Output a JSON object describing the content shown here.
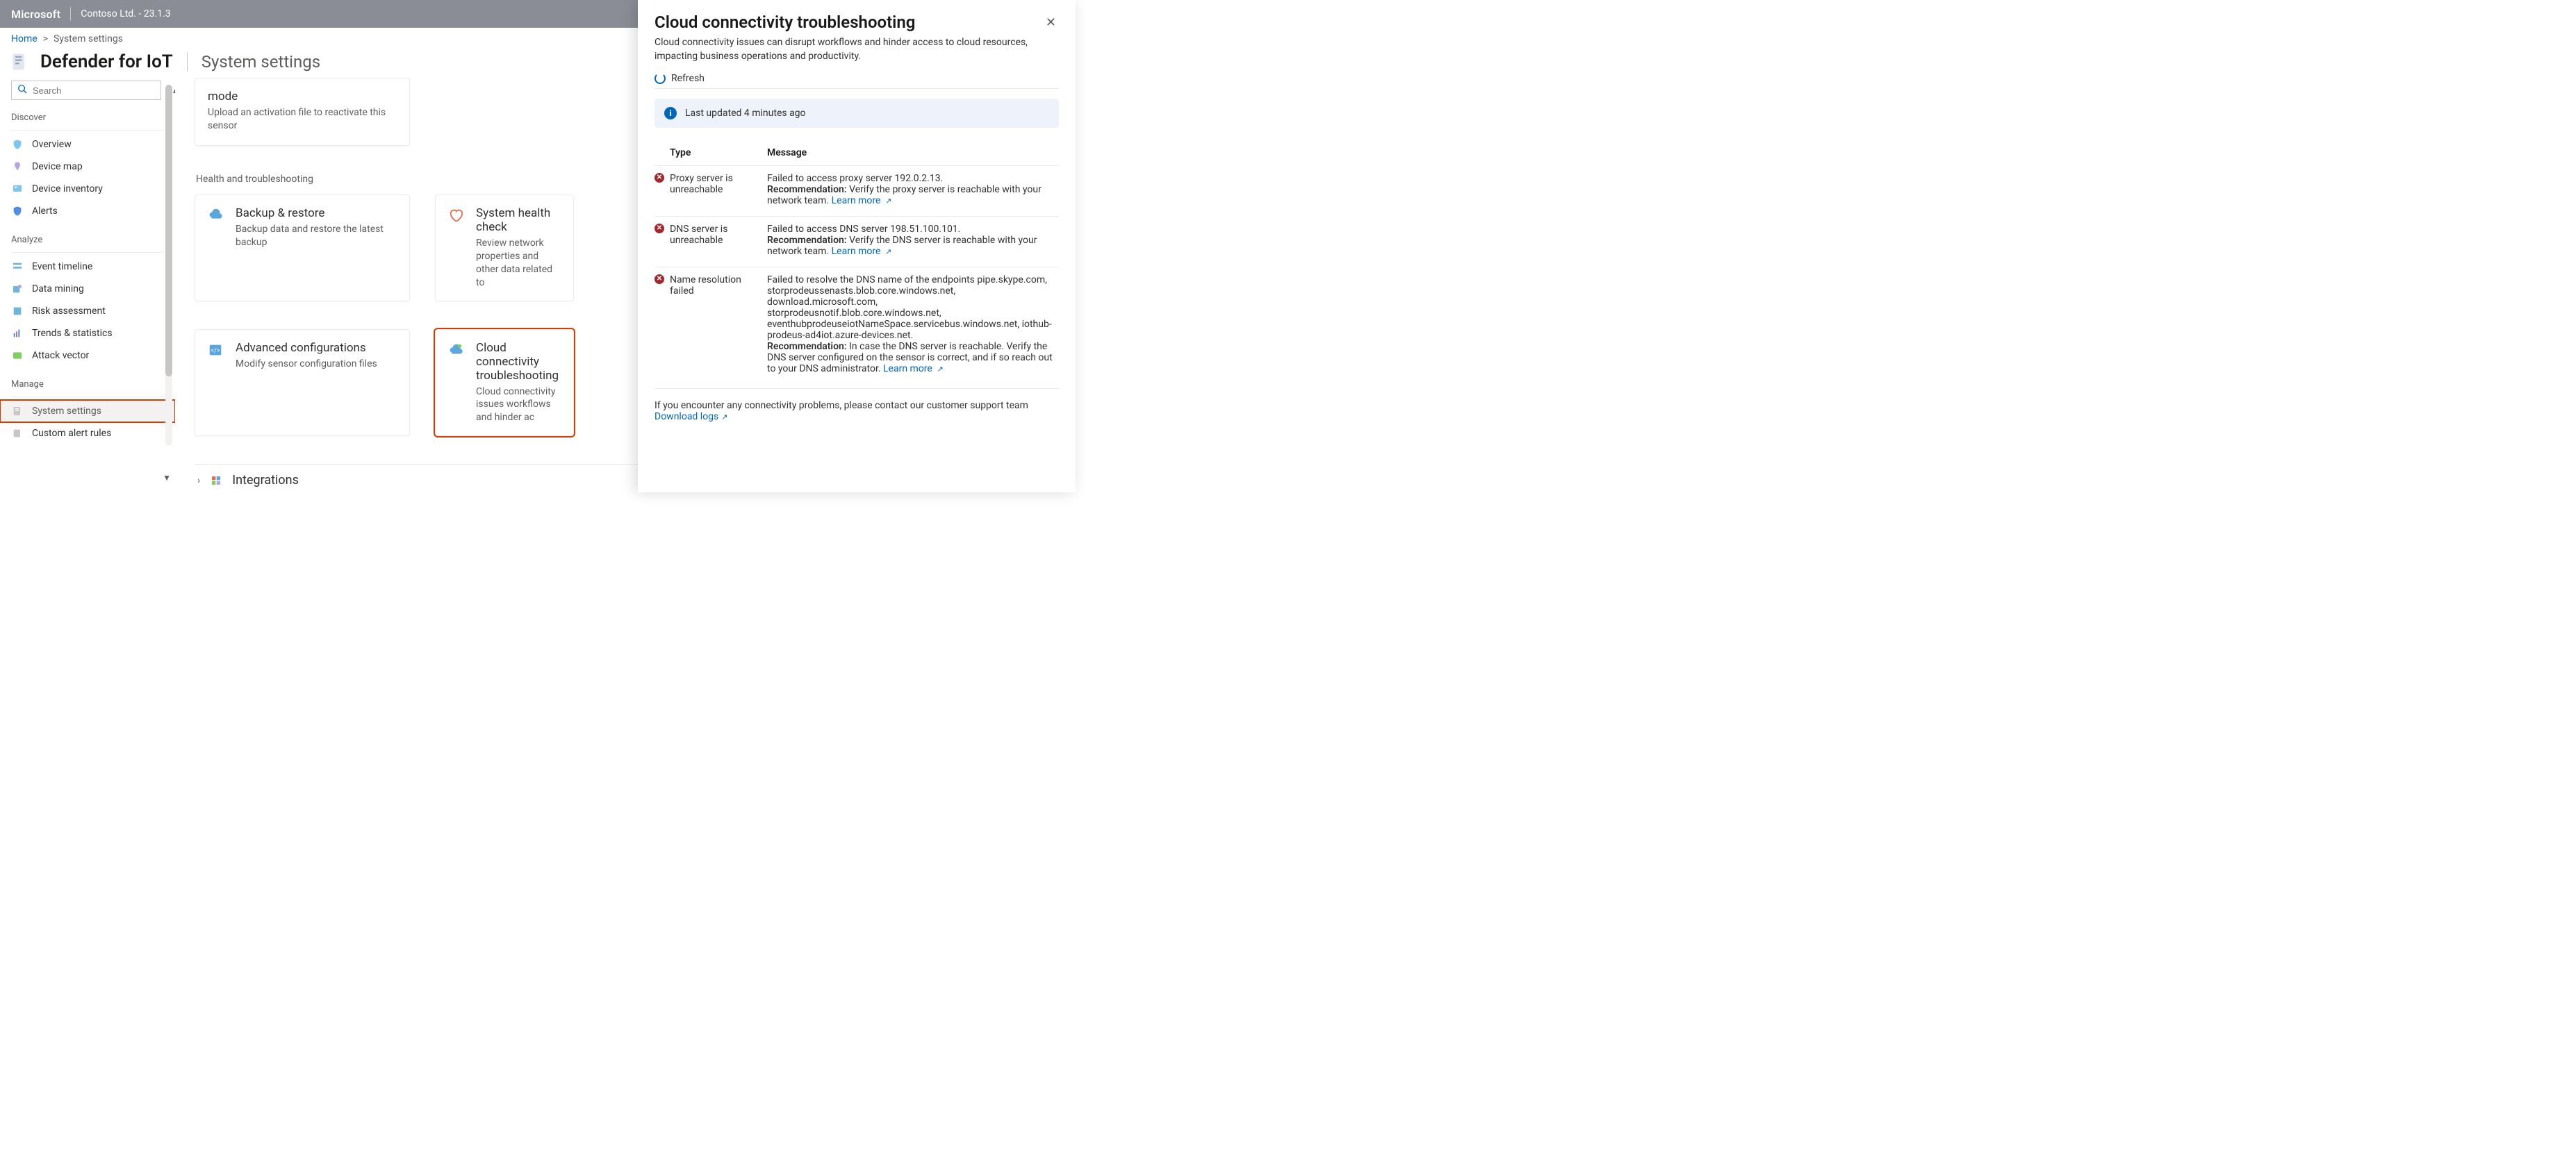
{
  "colors": {
    "topbar_bg": "#8a8d95",
    "link": "#0067b8",
    "text": "#323130",
    "muted": "#605e5c",
    "border": "#edebe9",
    "highlight_red": "#d83b01",
    "info_banner_bg": "#eef3fb",
    "error_badge": "#a4262c",
    "sidebar_active_bg": "#f3f2f1"
  },
  "topbar": {
    "brand": "Microsoft",
    "context": "Contoso Ltd. - 23.1.3"
  },
  "breadcrumb": {
    "home": "Home",
    "sep": ">",
    "current": "System settings"
  },
  "title": {
    "product": "Defender for IoT",
    "page": "System settings"
  },
  "sidebar": {
    "search_placeholder": "Search",
    "sections": {
      "discover": "Discover",
      "analyze": "Analyze",
      "manage": "Manage"
    },
    "items": {
      "overview": "Overview",
      "device_map": "Device map",
      "device_inventory": "Device inventory",
      "alerts": "Alerts",
      "event_timeline": "Event timeline",
      "data_mining": "Data mining",
      "risk_assessment": "Risk assessment",
      "trends_statistics": "Trends & statistics",
      "attack_vector": "Attack vector",
      "system_settings": "System settings",
      "custom_alert_rules": "Custom alert rules"
    }
  },
  "main": {
    "mode_card": {
      "title": "mode",
      "desc": "Upload an activation file to reactivate this sensor"
    },
    "section_health": "Health and troubleshooting",
    "backup_card": {
      "title": "Backup & restore",
      "desc": "Backup data and restore the latest backup"
    },
    "health_card": {
      "title": "System health check",
      "desc": "Review network properties and other data related to"
    },
    "advanced_card": {
      "title": "Advanced configurations",
      "desc": "Modify sensor configuration files"
    },
    "cloud_card": {
      "title": "Cloud connectivity troubleshooting",
      "desc": "Cloud connectivity issues workflows and hinder ac"
    },
    "accordion_integrations": "Integrations"
  },
  "panel": {
    "title": "Cloud connectivity troubleshooting",
    "description": "Cloud connectivity issues can disrupt workflows and hinder access to cloud resources, impacting business operations and productivity.",
    "refresh_label": "Refresh",
    "last_updated": "Last updated 4 minutes ago",
    "columns": {
      "type": "Type",
      "message": "Message"
    },
    "learn_more": "Learn more",
    "recommendation_label": "Recommendation:",
    "issues": [
      {
        "type": "Proxy server is unreachable",
        "message": "Failed to access proxy server 192.0.2.13.",
        "recommendation": "Verify the proxy server is reachable with your network team."
      },
      {
        "type": "DNS server is unreachable",
        "message": "Failed to access DNS server 198.51.100.101.",
        "recommendation": "Verify the DNS server is reachable with your network team."
      },
      {
        "type": "Name resolution failed",
        "message": "Failed to resolve the DNS name of the endpoints pipe.skype.com, storprodeussenasts.blob.core.windows.net, download.microsoft.com, storprodeusnotif.blob.core.windows.net, eventhubprodeuseiotNameSpace.servicebus.windows.net, iothub-prodeus-ad4iot.azure-devices.net.",
        "recommendation": "In case the DNS server is reachable. Verify the DNS server configured on the sensor is correct, and if so reach out to your DNS administrator."
      }
    ],
    "footer_text": "If you encounter any connectivity problems, please contact our customer support team",
    "download_logs": "Download logs"
  }
}
